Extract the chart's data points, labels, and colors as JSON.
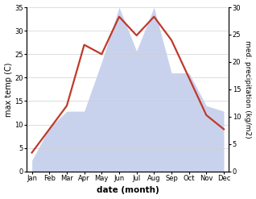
{
  "months": [
    "Jan",
    "Feb",
    "Mar",
    "Apr",
    "May",
    "Jun",
    "Jul",
    "Aug",
    "Sep",
    "Oct",
    "Nov",
    "Dec"
  ],
  "temperature": [
    4,
    9,
    14,
    27,
    25,
    33,
    29,
    33,
    28,
    20,
    12,
    9
  ],
  "precipitation": [
    2,
    8,
    11,
    11,
    20,
    30,
    22,
    30,
    18,
    18,
    12,
    11
  ],
  "temp_ylim": [
    0,
    35
  ],
  "precip_ylim": [
    0,
    30
  ],
  "temp_yticks": [
    0,
    5,
    10,
    15,
    20,
    25,
    30,
    35
  ],
  "precip_yticks": [
    0,
    5,
    10,
    15,
    20,
    25,
    30
  ],
  "xlabel": "date (month)",
  "ylabel_left": "max temp (C)",
  "ylabel_right": "med. precipitation (kg/m2)",
  "line_color": "#c0392b",
  "fill_color": "#b8c4e8",
  "fill_alpha": 0.75,
  "bg_color": "#ffffff",
  "line_width": 1.6
}
